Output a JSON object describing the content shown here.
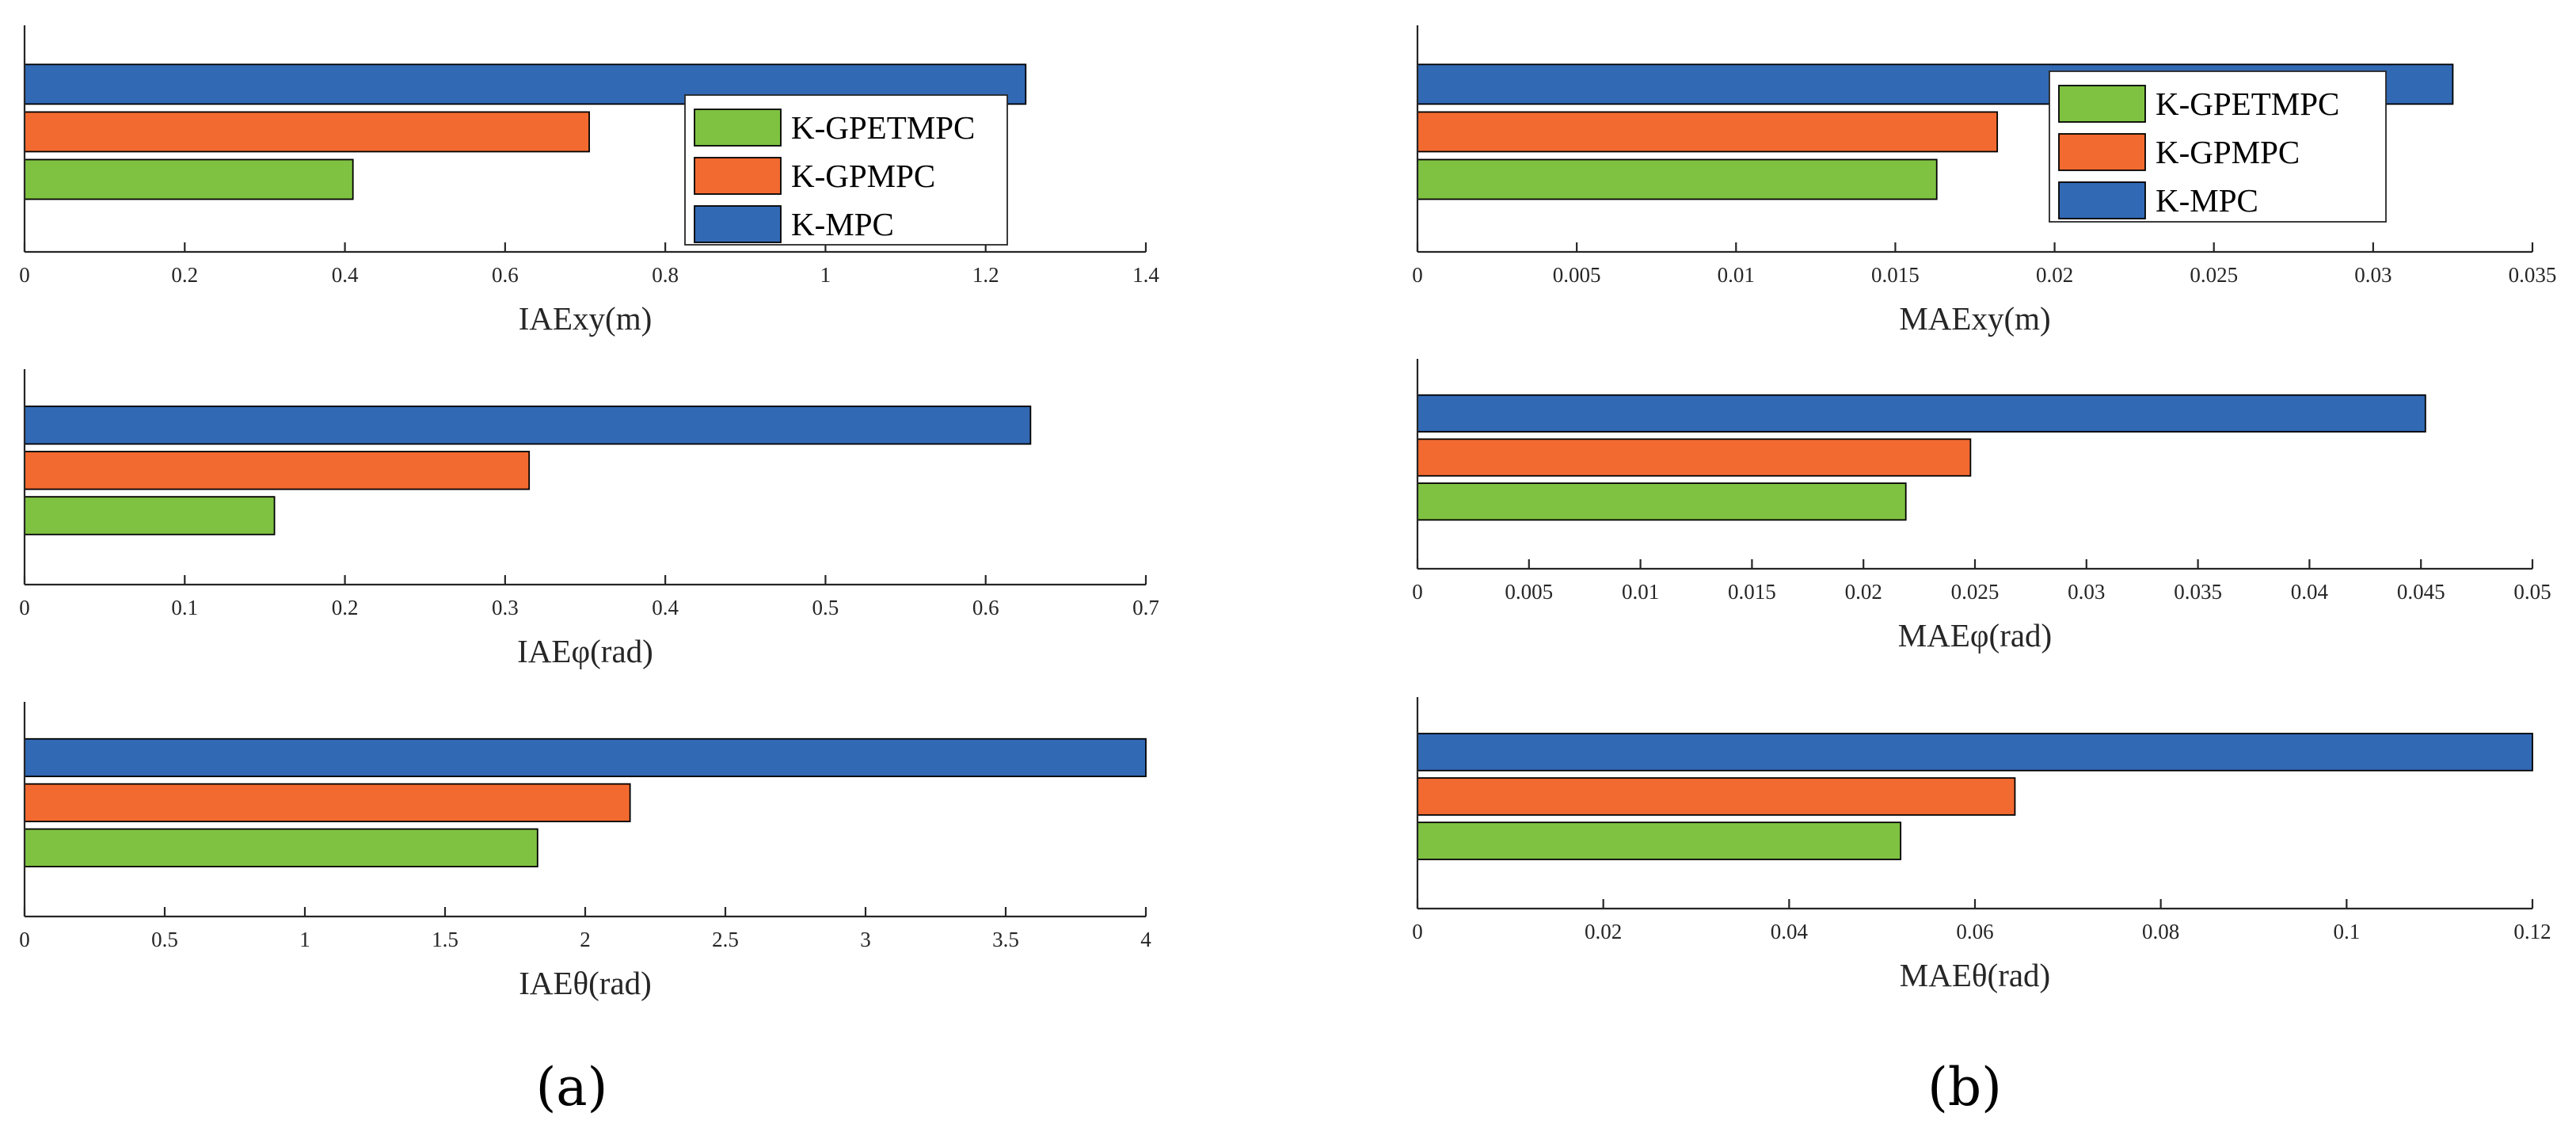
{
  "colors": {
    "K-MPC": "#3269b4",
    "K-GPMPC": "#f26a30",
    "K-GPETMPC": "#7fc241"
  },
  "panel_labels": [
    "(a)",
    "(b)"
  ],
  "chart_data": [
    {
      "type": "bar",
      "orientation": "horizontal",
      "panel": "a",
      "xlabel": "IAExy(m)",
      "xlim": [
        0,
        1.4
      ],
      "ticks": [
        0,
        0.2,
        0.4,
        0.6,
        0.8,
        1,
        1.2,
        1.4
      ],
      "tick_labels": [
        "0",
        "0.2",
        "0.4",
        "0.6",
        "0.8",
        "1",
        "1.2",
        "1.4"
      ],
      "series": [
        {
          "name": "K-MPC",
          "value": 1.25
        },
        {
          "name": "K-GPMPC",
          "value": 0.705
        },
        {
          "name": "K-GPETMPC",
          "value": 0.41
        }
      ],
      "legend": {
        "placement": "top-right",
        "entries": [
          "K-GPETMPC",
          "K-GPMPC",
          "K-MPC"
        ]
      }
    },
    {
      "type": "bar",
      "orientation": "horizontal",
      "panel": "a",
      "xlabel": "IAEφ(rad)",
      "xlim": [
        0,
        0.7
      ],
      "ticks": [
        0,
        0.1,
        0.2,
        0.3,
        0.4,
        0.5,
        0.6,
        0.7
      ],
      "tick_labels": [
        "0",
        "0.1",
        "0.2",
        "0.3",
        "0.4",
        "0.5",
        "0.6",
        "0.7"
      ],
      "series": [
        {
          "name": "K-MPC",
          "value": 0.628
        },
        {
          "name": "K-GPMPC",
          "value": 0.315
        },
        {
          "name": "K-GPETMPC",
          "value": 0.156
        }
      ]
    },
    {
      "type": "bar",
      "orientation": "horizontal",
      "panel": "a",
      "xlabel": "IAEθ(rad)",
      "xlim": [
        0,
        4
      ],
      "ticks": [
        0,
        0.5,
        1,
        1.5,
        2,
        2.5,
        3,
        3.5,
        4
      ],
      "tick_labels": [
        "0",
        "0.5",
        "1",
        "1.5",
        "2",
        "2.5",
        "3",
        "3.5",
        "4"
      ],
      "series": [
        {
          "name": "K-MPC",
          "value": 4.0
        },
        {
          "name": "K-GPMPC",
          "value": 2.16
        },
        {
          "name": "K-GPETMPC",
          "value": 1.83
        }
      ]
    },
    {
      "type": "bar",
      "orientation": "horizontal",
      "panel": "b",
      "xlabel": "MAExy(m)",
      "xlim": [
        0,
        0.035
      ],
      "ticks": [
        0,
        0.005,
        0.01,
        0.015,
        0.02,
        0.025,
        0.03,
        0.035
      ],
      "tick_labels": [
        "0",
        "0.005",
        "0.01",
        "0.015",
        "0.02",
        "0.025",
        "0.03",
        "0.035"
      ],
      "series": [
        {
          "name": "K-MPC",
          "value": 0.0325
        },
        {
          "name": "K-GPMPC",
          "value": 0.0182
        },
        {
          "name": "K-GPETMPC",
          "value": 0.0163
        }
      ],
      "legend": {
        "placement": "top-right",
        "entries": [
          "K-GPETMPC",
          "K-GPMPC",
          "K-MPC"
        ]
      }
    },
    {
      "type": "bar",
      "orientation": "horizontal",
      "panel": "b",
      "xlabel": "MAEφ(rad)",
      "xlim": [
        0,
        0.05
      ],
      "ticks": [
        0,
        0.005,
        0.01,
        0.015,
        0.02,
        0.025,
        0.03,
        0.035,
        0.04,
        0.045,
        0.05
      ],
      "tick_labels": [
        "0",
        "0.005",
        "0.01",
        "0.015",
        "0.02",
        "0.025",
        "0.03",
        "0.035",
        "0.04",
        "0.045",
        "0.05"
      ],
      "series": [
        {
          "name": "K-MPC",
          "value": 0.0452
        },
        {
          "name": "K-GPMPC",
          "value": 0.0248
        },
        {
          "name": "K-GPETMPC",
          "value": 0.0219
        }
      ]
    },
    {
      "type": "bar",
      "orientation": "horizontal",
      "panel": "b",
      "xlabel": "MAEθ(rad)",
      "xlim": [
        0,
        0.12
      ],
      "ticks": [
        0,
        0.02,
        0.04,
        0.06,
        0.08,
        0.1,
        0.12
      ],
      "tick_labels": [
        "0",
        "0.02",
        "0.04",
        "0.06",
        "0.08",
        "0.1",
        "0.12"
      ],
      "series": [
        {
          "name": "K-MPC",
          "value": 0.12
        },
        {
          "name": "K-GPMPC",
          "value": 0.0643
        },
        {
          "name": "K-GPETMPC",
          "value": 0.052
        }
      ]
    }
  ]
}
